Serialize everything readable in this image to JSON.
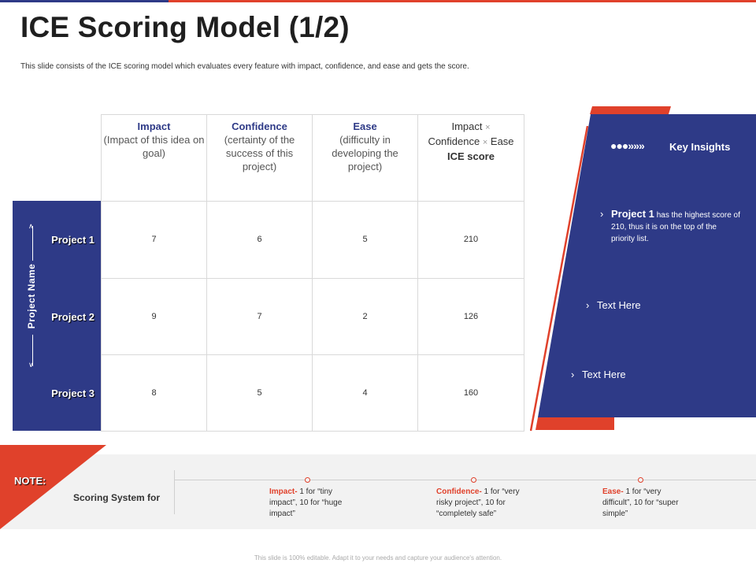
{
  "title": "ICE Scoring Model (1/2)",
  "subtitle": "This slide consists of the ICE scoring model which evaluates every feature with impact, confidence, and ease and gets the score.",
  "table": {
    "headers": [
      {
        "name": "Impact",
        "desc": "(Impact of this idea on goal)"
      },
      {
        "name": "Confidence",
        "desc": "(certainty of the success of this project)"
      },
      {
        "name": "Ease",
        "desc": "(difficulty in developing the project)"
      }
    ],
    "score_header": {
      "l1": "Impact",
      "l2a": "Confidence",
      "l2b": "Ease",
      "l3": "ICE score",
      "times": "×"
    },
    "axis_label": "Project Name",
    "rows": [
      {
        "name": "Project 1",
        "values": [
          "7",
          "6",
          "5",
          "210"
        ]
      },
      {
        "name": "Project 2",
        "values": [
          "9",
          "7",
          "2",
          "126"
        ]
      },
      {
        "name": "Project 3",
        "values": [
          "8",
          "5",
          "4",
          "160"
        ]
      }
    ]
  },
  "insights": {
    "icon": "●●●»»»",
    "title": "Key Insights",
    "chevron": "›",
    "items": [
      {
        "bold": "Project 1",
        "text": "has the highest score of 210, thus it is on the top of the priority list."
      },
      {
        "text": "Text Here"
      },
      {
        "text": "Text Here"
      }
    ]
  },
  "note": {
    "label": "NOTE:",
    "scoring_label": "Scoring System for",
    "items": [
      {
        "key": "Impact-",
        "text": " 1 for “tiny impact”, 10 for “huge impact”"
      },
      {
        "key": "Confidence-",
        "text": " 1 for “very risky project”, 10 for “completely safe”"
      },
      {
        "key": "Ease-",
        "text": " 1 for “very difficult”, 10 for “super simple”"
      }
    ]
  },
  "footer": "This slide is 100% editable. Adapt it to your needs and capture your audience's attention.",
  "colors": {
    "navy": "#2e3a87",
    "red": "#e0412b"
  }
}
